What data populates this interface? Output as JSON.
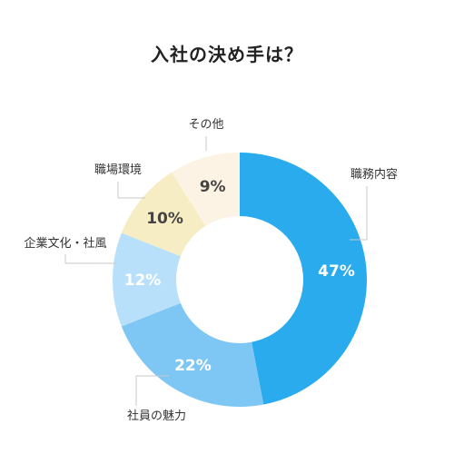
{
  "chart_data": {
    "type": "pie",
    "variant": "donut",
    "title": "入社の決め手は？",
    "categories": [
      "職務内容",
      "社員の魅力",
      "企業文化・社風",
      "職場環境",
      "その他"
    ],
    "values": [
      47,
      22,
      12,
      10,
      9
    ],
    "value_labels": [
      "47%",
      "22%",
      "12%",
      "10%",
      "9%"
    ],
    "colors": [
      "#29abee",
      "#7ec7f5",
      "#b9e0fb",
      "#f7edc4",
      "#fdf3e4"
    ],
    "value_label_colors": [
      "#ffffff",
      "#ffffff",
      "#ffffff",
      "#444444",
      "#444444"
    ],
    "start_angle_deg": 0,
    "direction": "clockwise",
    "legend": "none"
  }
}
